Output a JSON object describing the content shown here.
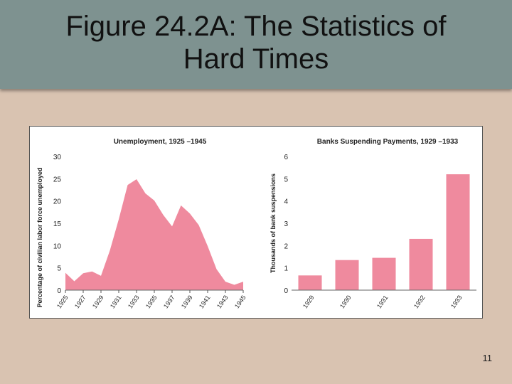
{
  "slide": {
    "title": "Figure 24.2A: The Statistics of Hard Times",
    "page_number": "11"
  },
  "colors": {
    "accent": "#ef8a9e",
    "title_bar": "#7e9290",
    "background": "#d9c3b1"
  },
  "chart_data": [
    {
      "type": "area",
      "title": "Unemployment, 1925 –1945",
      "xlabel": "",
      "ylabel": "Percentage of civilian labor force unemployed",
      "xlim": [
        1925,
        1945
      ],
      "ylim": [
        0,
        30
      ],
      "yticks": [
        "0",
        "5",
        "10",
        "15",
        "20",
        "25",
        "30"
      ],
      "xticks": [
        "1925",
        "1927",
        "1929",
        "1931",
        "1933",
        "1935",
        "1937",
        "1939",
        "1941",
        "1943",
        "1945"
      ],
      "x": [
        1925,
        1926,
        1927,
        1928,
        1929,
        1930,
        1931,
        1932,
        1933,
        1934,
        1935,
        1936,
        1937,
        1938,
        1939,
        1940,
        1941,
        1942,
        1943,
        1944,
        1945
      ],
      "values": [
        3.9,
        2.0,
        3.8,
        4.2,
        3.2,
        8.9,
        15.9,
        23.6,
        24.9,
        21.7,
        20.1,
        16.9,
        14.3,
        19.0,
        17.2,
        14.6,
        9.9,
        4.7,
        1.9,
        1.2,
        1.9
      ],
      "grid": false
    },
    {
      "type": "bar",
      "title": "Banks Suspending Payments, 1929 –1933",
      "xlabel": "",
      "ylabel": "Thousands of bank suspensions",
      "ylim": [
        0,
        6
      ],
      "yticks": [
        "0",
        "1",
        "2",
        "3",
        "4",
        "5",
        "6"
      ],
      "categories": [
        "1929",
        "1930",
        "1931",
        "1932",
        "1933"
      ],
      "values": [
        0.66,
        1.35,
        1.45,
        2.3,
        5.2
      ],
      "grid": false
    }
  ]
}
